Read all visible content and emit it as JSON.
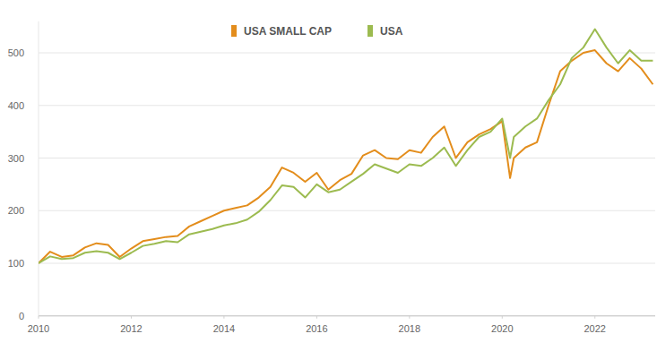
{
  "chart_data": {
    "type": "line",
    "x": [
      2010,
      2010.25,
      2010.5,
      2010.75,
      2011,
      2011.25,
      2011.5,
      2011.75,
      2012,
      2012.25,
      2012.5,
      2012.75,
      2013,
      2013.25,
      2013.5,
      2013.75,
      2014,
      2014.25,
      2014.5,
      2014.75,
      2015,
      2015.25,
      2015.5,
      2015.75,
      2016,
      2016.25,
      2016.5,
      2016.75,
      2017,
      2017.25,
      2017.5,
      2017.75,
      2018,
      2018.25,
      2018.5,
      2018.75,
      2019,
      2019.25,
      2019.5,
      2019.75,
      2020,
      2020.17,
      2020.25,
      2020.5,
      2020.75,
      2021,
      2021.25,
      2021.5,
      2021.75,
      2022,
      2022.25,
      2022.5,
      2022.75,
      2023,
      2023.25
    ],
    "series": [
      {
        "name": "USA SMALL CAP",
        "color": "#e38d1c",
        "values": [
          100,
          122,
          112,
          115,
          130,
          138,
          135,
          112,
          128,
          142,
          146,
          150,
          152,
          170,
          180,
          190,
          200,
          205,
          210,
          225,
          245,
          282,
          272,
          255,
          272,
          240,
          258,
          270,
          305,
          315,
          300,
          298,
          315,
          310,
          340,
          360,
          300,
          330,
          345,
          355,
          370,
          262,
          300,
          320,
          330,
          400,
          465,
          485,
          500,
          505,
          480,
          465,
          490,
          470,
          440
        ]
      },
      {
        "name": "USA",
        "color": "#9cbb50",
        "values": [
          100,
          113,
          108,
          110,
          120,
          123,
          120,
          108,
          120,
          133,
          137,
          142,
          140,
          155,
          160,
          165,
          172,
          176,
          183,
          198,
          220,
          248,
          245,
          225,
          250,
          235,
          240,
          255,
          270,
          288,
          280,
          272,
          288,
          285,
          300,
          320,
          285,
          315,
          340,
          350,
          375,
          300,
          340,
          360,
          375,
          410,
          440,
          490,
          510,
          545,
          510,
          480,
          505,
          485,
          485
        ]
      }
    ],
    "xlim": [
      2010,
      2023.3
    ],
    "xticks": [
      2010,
      2012,
      2014,
      2016,
      2018,
      2020,
      2022
    ],
    "ylim": [
      0,
      560
    ],
    "yticks": [
      0,
      100,
      200,
      300,
      400,
      500
    ],
    "grid": true,
    "legend": "top"
  }
}
